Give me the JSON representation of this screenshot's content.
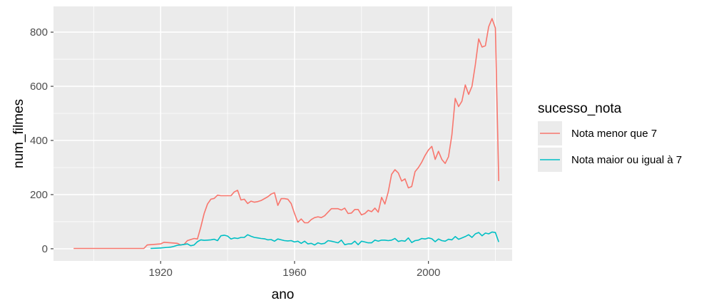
{
  "chart_data": {
    "type": "line",
    "title": "",
    "xlabel": "ano",
    "ylabel": "num_filmes",
    "xlim": [
      1888,
      2025
    ],
    "ylim": [
      -45,
      895
    ],
    "x_ticks": [
      1920,
      1960,
      2000
    ],
    "y_ticks": [
      0,
      200,
      400,
      600,
      800
    ],
    "grid": true,
    "legend": {
      "title": "sucesso_nota",
      "position": "right"
    },
    "series": [
      {
        "name": "Nota menor que 7",
        "color": "#F8766D",
        "points": [
          [
            1894,
            1
          ],
          [
            1900,
            1
          ],
          [
            1906,
            1
          ],
          [
            1912,
            1
          ],
          [
            1915,
            1
          ],
          [
            1916,
            14
          ],
          [
            1918,
            16
          ],
          [
            1920,
            18
          ],
          [
            1921,
            24
          ],
          [
            1923,
            22
          ],
          [
            1925,
            20
          ],
          [
            1926,
            14
          ],
          [
            1927,
            16
          ],
          [
            1928,
            30
          ],
          [
            1929,
            34
          ],
          [
            1930,
            38
          ],
          [
            1931,
            36
          ],
          [
            1932,
            80
          ],
          [
            1933,
            130
          ],
          [
            1934,
            165
          ],
          [
            1935,
            183
          ],
          [
            1936,
            186
          ],
          [
            1937,
            198
          ],
          [
            1938,
            196
          ],
          [
            1939,
            196
          ],
          [
            1941,
            196
          ],
          [
            1942,
            210
          ],
          [
            1943,
            216
          ],
          [
            1944,
            180
          ],
          [
            1945,
            183
          ],
          [
            1946,
            167
          ],
          [
            1947,
            176
          ],
          [
            1948,
            172
          ],
          [
            1949,
            174
          ],
          [
            1950,
            178
          ],
          [
            1952,
            192
          ],
          [
            1953,
            202
          ],
          [
            1954,
            207
          ],
          [
            1955,
            160
          ],
          [
            1956,
            185
          ],
          [
            1957,
            185
          ],
          [
            1958,
            183
          ],
          [
            1959,
            167
          ],
          [
            1960,
            130
          ],
          [
            1961,
            98
          ],
          [
            1962,
            110
          ],
          [
            1963,
            96
          ],
          [
            1964,
            96
          ],
          [
            1965,
            108
          ],
          [
            1966,
            115
          ],
          [
            1967,
            118
          ],
          [
            1968,
            115
          ],
          [
            1969,
            122
          ],
          [
            1970,
            135
          ],
          [
            1971,
            148
          ],
          [
            1972,
            148
          ],
          [
            1973,
            148
          ],
          [
            1974,
            143
          ],
          [
            1975,
            150
          ],
          [
            1976,
            130
          ],
          [
            1977,
            132
          ],
          [
            1978,
            145
          ],
          [
            1979,
            145
          ],
          [
            1980,
            125
          ],
          [
            1981,
            130
          ],
          [
            1982,
            142
          ],
          [
            1983,
            137
          ],
          [
            1984,
            150
          ],
          [
            1985,
            135
          ],
          [
            1986,
            190
          ],
          [
            1987,
            165
          ],
          [
            1988,
            210
          ],
          [
            1989,
            275
          ],
          [
            1990,
            292
          ],
          [
            1991,
            280
          ],
          [
            1992,
            250
          ],
          [
            1993,
            258
          ],
          [
            1994,
            225
          ],
          [
            1995,
            230
          ],
          [
            1996,
            285
          ],
          [
            1997,
            300
          ],
          [
            1998,
            320
          ],
          [
            1999,
            345
          ],
          [
            2000,
            365
          ],
          [
            2001,
            378
          ],
          [
            2002,
            330
          ],
          [
            2003,
            360
          ],
          [
            2004,
            330
          ],
          [
            2005,
            315
          ],
          [
            2006,
            340
          ],
          [
            2007,
            420
          ],
          [
            2008,
            555
          ],
          [
            2009,
            525
          ],
          [
            2010,
            545
          ],
          [
            2011,
            605
          ],
          [
            2012,
            570
          ],
          [
            2013,
            600
          ],
          [
            2014,
            680
          ],
          [
            2015,
            775
          ],
          [
            2016,
            745
          ],
          [
            2017,
            750
          ],
          [
            2018,
            820
          ],
          [
            2019,
            850
          ],
          [
            2020,
            815
          ],
          [
            2021,
            250
          ]
        ]
      },
      {
        "name": "Nota maior ou igual à 7",
        "color": "#00BFC4",
        "points": [
          [
            1917,
            1
          ],
          [
            1919,
            2
          ],
          [
            1920,
            3
          ],
          [
            1922,
            5
          ],
          [
            1923,
            6
          ],
          [
            1924,
            9
          ],
          [
            1925,
            13
          ],
          [
            1926,
            14
          ],
          [
            1927,
            16
          ],
          [
            1928,
            18
          ],
          [
            1929,
            11
          ],
          [
            1930,
            14
          ],
          [
            1931,
            26
          ],
          [
            1932,
            33
          ],
          [
            1933,
            31
          ],
          [
            1934,
            32
          ],
          [
            1935,
            33
          ],
          [
            1936,
            35
          ],
          [
            1937,
            30
          ],
          [
            1938,
            48
          ],
          [
            1939,
            50
          ],
          [
            1940,
            47
          ],
          [
            1941,
            36
          ],
          [
            1942,
            40
          ],
          [
            1943,
            38
          ],
          [
            1944,
            42
          ],
          [
            1945,
            42
          ],
          [
            1946,
            52
          ],
          [
            1947,
            46
          ],
          [
            1948,
            42
          ],
          [
            1949,
            40
          ],
          [
            1950,
            38
          ],
          [
            1951,
            37
          ],
          [
            1952,
            33
          ],
          [
            1953,
            34
          ],
          [
            1954,
            28
          ],
          [
            1955,
            36
          ],
          [
            1956,
            33
          ],
          [
            1957,
            30
          ],
          [
            1958,
            29
          ],
          [
            1959,
            30
          ],
          [
            1960,
            25
          ],
          [
            1961,
            28
          ],
          [
            1962,
            20
          ],
          [
            1963,
            28
          ],
          [
            1964,
            18
          ],
          [
            1965,
            20
          ],
          [
            1966,
            14
          ],
          [
            1967,
            22
          ],
          [
            1968,
            18
          ],
          [
            1969,
            20
          ],
          [
            1970,
            30
          ],
          [
            1971,
            28
          ],
          [
            1972,
            25
          ],
          [
            1973,
            22
          ],
          [
            1974,
            32
          ],
          [
            1975,
            15
          ],
          [
            1976,
            18
          ],
          [
            1977,
            18
          ],
          [
            1978,
            28
          ],
          [
            1979,
            15
          ],
          [
            1980,
            28
          ],
          [
            1981,
            25
          ],
          [
            1982,
            22
          ],
          [
            1983,
            22
          ],
          [
            1984,
            32
          ],
          [
            1985,
            28
          ],
          [
            1986,
            32
          ],
          [
            1987,
            32
          ],
          [
            1988,
            30
          ],
          [
            1989,
            32
          ],
          [
            1990,
            38
          ],
          [
            1991,
            27
          ],
          [
            1992,
            30
          ],
          [
            1993,
            28
          ],
          [
            1994,
            40
          ],
          [
            1995,
            23
          ],
          [
            1996,
            30
          ],
          [
            1997,
            32
          ],
          [
            1998,
            38
          ],
          [
            1999,
            36
          ],
          [
            2000,
            40
          ],
          [
            2001,
            37
          ],
          [
            2002,
            26
          ],
          [
            2003,
            36
          ],
          [
            2004,
            30
          ],
          [
            2005,
            28
          ],
          [
            2006,
            35
          ],
          [
            2007,
            33
          ],
          [
            2008,
            45
          ],
          [
            2009,
            35
          ],
          [
            2010,
            40
          ],
          [
            2011,
            45
          ],
          [
            2012,
            52
          ],
          [
            2013,
            42
          ],
          [
            2014,
            55
          ],
          [
            2015,
            60
          ],
          [
            2016,
            48
          ],
          [
            2017,
            58
          ],
          [
            2018,
            55
          ],
          [
            2019,
            62
          ],
          [
            2020,
            60
          ],
          [
            2021,
            25
          ]
        ]
      }
    ]
  }
}
